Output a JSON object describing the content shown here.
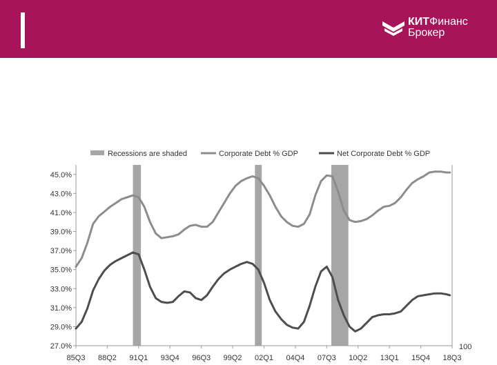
{
  "header": {
    "brand_line1_bold": "КИТ",
    "brand_line1_rest": "Финанс",
    "brand_line2": "Брокер",
    "brand_color": "#a8145a"
  },
  "chart_data": {
    "type": "line",
    "title": "",
    "xlabel": "",
    "ylabel": "",
    "ylim": [
      27.0,
      46.0
    ],
    "y_ticks": [
      "27.0%",
      "29.0%",
      "31.0%",
      "33.0%",
      "35.0%",
      "37.0%",
      "39.0%",
      "41.0%",
      "43.0%",
      "45.0%"
    ],
    "x_ticks": [
      "85Q3",
      "88Q2",
      "91Q1",
      "93Q4",
      "96Q3",
      "99Q2",
      "02Q1",
      "04Q4",
      "07Q3",
      "10Q2",
      "13Q1",
      "15Q4",
      "18Q3"
    ],
    "x_range": [
      1985.5,
      2018.5
    ],
    "right_axis_label": "100",
    "grid": false,
    "legend_position": "top",
    "legend": [
      {
        "label": "Recessions are shaded",
        "kind": "bar",
        "color": "#a6a6a6"
      },
      {
        "label": "Corporate Debt % GDP",
        "kind": "line",
        "color": "#8c8c8c"
      },
      {
        "label": "Net Corporate Debt % GDP",
        "kind": "line",
        "color": "#4d4d4d"
      }
    ],
    "recessions": [
      {
        "start": 1990.5,
        "end": 1991.2
      },
      {
        "start": 2001.2,
        "end": 2001.8
      },
      {
        "start": 2007.9,
        "end": 2009.4
      }
    ],
    "series": [
      {
        "name": "Corporate Debt % GDP",
        "color": "#8c8c8c",
        "x": [
          1985.5,
          1986.0,
          1986.5,
          1987.0,
          1987.5,
          1988.0,
          1988.5,
          1989.0,
          1989.5,
          1990.0,
          1990.5,
          1991.0,
          1991.5,
          1992.0,
          1992.5,
          1993.0,
          1993.5,
          1994.0,
          1994.5,
          1995.0,
          1995.5,
          1996.0,
          1996.5,
          1997.0,
          1997.5,
          1998.0,
          1998.5,
          1999.0,
          1999.5,
          2000.0,
          2000.5,
          2001.0,
          2001.5,
          2002.0,
          2002.5,
          2003.0,
          2003.5,
          2004.0,
          2004.5,
          2005.0,
          2005.5,
          2006.0,
          2006.5,
          2007.0,
          2007.5,
          2008.0,
          2008.5,
          2009.0,
          2009.5,
          2010.0,
          2010.5,
          2011.0,
          2011.5,
          2012.0,
          2012.5,
          2013.0,
          2013.5,
          2014.0,
          2014.5,
          2015.0,
          2015.5,
          2016.0,
          2016.5,
          2017.0,
          2017.5,
          2018.0,
          2018.3
        ],
        "values": [
          35.3,
          36.2,
          37.8,
          39.8,
          40.6,
          41.1,
          41.6,
          42.0,
          42.4,
          42.6,
          42.8,
          42.6,
          41.6,
          40.0,
          38.8,
          38.3,
          38.4,
          38.5,
          38.7,
          39.2,
          39.6,
          39.7,
          39.5,
          39.5,
          40.0,
          41.0,
          42.0,
          43.0,
          43.8,
          44.3,
          44.6,
          44.8,
          44.6,
          43.8,
          42.8,
          41.6,
          40.6,
          40.0,
          39.6,
          39.5,
          39.8,
          40.8,
          42.8,
          44.3,
          44.9,
          44.8,
          43.2,
          41.2,
          40.2,
          40.0,
          40.1,
          40.3,
          40.7,
          41.2,
          41.6,
          41.7,
          42.0,
          42.6,
          43.4,
          44.1,
          44.5,
          44.8,
          45.2,
          45.3,
          45.3,
          45.2,
          45.2
        ],
        "values_note": ""
      },
      {
        "name": "Net Corporate Debt % GDP",
        "color": "#4d4d4d",
        "x": [
          1985.5,
          1986.0,
          1986.5,
          1987.0,
          1987.5,
          1988.0,
          1988.5,
          1989.0,
          1989.5,
          1990.0,
          1990.5,
          1991.0,
          1991.5,
          1992.0,
          1992.5,
          1993.0,
          1993.5,
          1994.0,
          1994.5,
          1995.0,
          1995.5,
          1996.0,
          1996.5,
          1997.0,
          1997.5,
          1998.0,
          1998.5,
          1999.0,
          1999.5,
          2000.0,
          2000.5,
          2001.0,
          2001.5,
          2002.0,
          2002.5,
          2003.0,
          2003.5,
          2004.0,
          2004.5,
          2005.0,
          2005.5,
          2006.0,
          2006.5,
          2007.0,
          2007.5,
          2008.0,
          2008.5,
          2009.0,
          2009.5,
          2010.0,
          2010.5,
          2011.0,
          2011.5,
          2012.0,
          2012.5,
          2013.0,
          2013.5,
          2014.0,
          2014.5,
          2015.0,
          2015.5,
          2016.0,
          2016.5,
          2017.0,
          2017.5,
          2018.0,
          2018.3
        ],
        "values": [
          28.8,
          29.5,
          30.9,
          32.8,
          34.0,
          34.9,
          35.5,
          35.9,
          36.2,
          36.5,
          36.8,
          36.6,
          35.0,
          33.2,
          32.0,
          31.6,
          31.5,
          31.6,
          32.2,
          32.7,
          32.6,
          32.0,
          31.8,
          32.3,
          33.2,
          34.0,
          34.6,
          35.0,
          35.3,
          35.6,
          35.8,
          35.6,
          35.0,
          33.6,
          31.8,
          30.6,
          29.8,
          29.2,
          28.9,
          28.8,
          29.5,
          31.2,
          33.2,
          34.8,
          35.3,
          34.2,
          31.8,
          30.2,
          29.0,
          28.5,
          28.8,
          29.4,
          30.0,
          30.2,
          30.3,
          30.3,
          30.4,
          30.6,
          31.2,
          31.8,
          32.2,
          32.3,
          32.4,
          32.5,
          32.5,
          32.4,
          32.3
        ],
        "values_note": ""
      }
    ]
  }
}
